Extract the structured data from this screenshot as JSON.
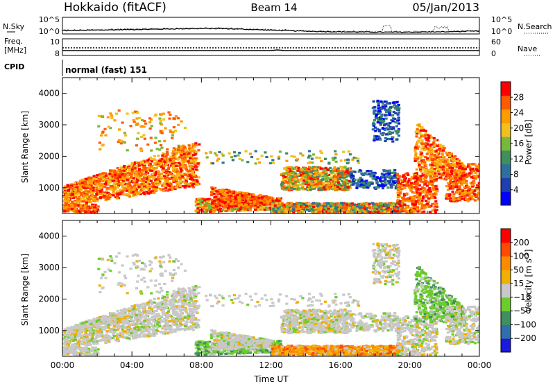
{
  "header": {
    "station": "Hokkaido (fitACF)",
    "beam": "Beam 14",
    "date": "05/Jan/2013"
  },
  "noise_panel": {
    "left_label": "N.Sky",
    "right_label": "N.Search",
    "ticks_left": [
      "10^5",
      "10^0"
    ],
    "ticks_right": [
      "10^5",
      "10^0"
    ]
  },
  "freq_panel": {
    "left_label_1": "Freq.",
    "left_label_2": "[MHz]",
    "right_label": "Nave",
    "ticks_left": [
      "10",
      "8"
    ],
    "ticks_right": [
      "60",
      "0"
    ]
  },
  "cpid": {
    "label": "CPID",
    "value": "normal (fast) 151"
  },
  "chart_data": [
    {
      "type": "heatmap",
      "title": "",
      "ylabel": "Slant Range [km]",
      "ylim": [
        180,
        4500
      ],
      "y_ticks": [
        1000,
        2000,
        3000,
        4000
      ],
      "xlim_hours": [
        0,
        24
      ],
      "colorbar": {
        "label": "Power [dB]",
        "range": [
          0,
          32
        ],
        "ticks": [
          "4",
          "8",
          "12",
          "16",
          "20",
          "24",
          "28"
        ],
        "colors": [
          "#0000ff",
          "#1f3fb0",
          "#2e6f9e",
          "#3f8f5f",
          "#78b83a",
          "#f0c020",
          "#ff9a00",
          "#ff5a00",
          "#ff0000"
        ]
      }
    },
    {
      "type": "heatmap",
      "title": "",
      "ylabel": "Slant Range [km]",
      "xlabel": "Time UT",
      "ylim": [
        180,
        4500
      ],
      "y_ticks": [
        1000,
        2000,
        3000,
        4000
      ],
      "xlim_hours": [
        0,
        24
      ],
      "x_ticks": [
        "00:00",
        "04:00",
        "08:00",
        "12:00",
        "16:00",
        "20:00",
        "00:00"
      ],
      "colorbar": {
        "label": "Velocity [m s^-1]",
        "ticks": [
          "200",
          "100",
          "50",
          "15",
          "−15",
          "−50",
          "−100",
          "−200"
        ],
        "colors": [
          "#1a1ae0",
          "#2e6fb0",
          "#3f8f5f",
          "#6ccc2a",
          "#c8c8c8",
          "#f0b000",
          "#ff8a00",
          "#ff4a00",
          "#ff0000"
        ]
      }
    }
  ]
}
